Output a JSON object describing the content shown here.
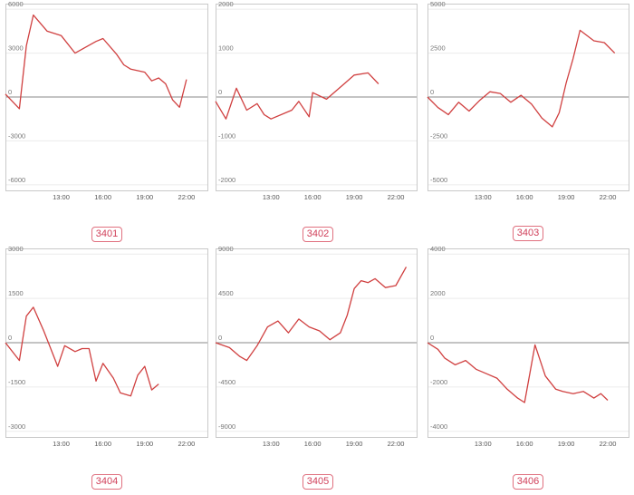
{
  "line_color": "#d04040",
  "label_color": "#d0405a",
  "chart_data": [
    {
      "type": "line",
      "label": "3401",
      "yticks": [
        6000,
        3000,
        0,
        -3000,
        -6000
      ],
      "ylim": [
        -6000,
        6000
      ],
      "xticks": [
        "13:00",
        "16:00",
        "19:00",
        "22:00"
      ],
      "x": [
        "09:00",
        "10:00",
        "10:30",
        "11:00",
        "12:00",
        "13:00",
        "14:00",
        "15:30",
        "16:00",
        "17:00",
        "17:30",
        "18:00",
        "19:00",
        "19:30",
        "20:00",
        "20:30",
        "21:00",
        "21:30",
        "22:00"
      ],
      "values": [
        200,
        -800,
        3500,
        5600,
        4500,
        4200,
        3000,
        3800,
        4000,
        2900,
        2200,
        1900,
        1700,
        1100,
        1300,
        900,
        -200,
        -700,
        1200
      ]
    },
    {
      "type": "line",
      "label": "3402",
      "yticks": [
        2000,
        1000,
        0,
        -1000,
        -2000
      ],
      "ylim": [
        -2000,
        2000
      ],
      "xticks": [
        "13:00",
        "16:00",
        "19:00",
        "22:00"
      ],
      "x": [
        "09:00",
        "09:45",
        "10:30",
        "11:15",
        "12:00",
        "12:30",
        "13:00",
        "14:30",
        "15:00",
        "15:45",
        "16:00",
        "17:00",
        "19:00",
        "20:00",
        "20:45"
      ],
      "values": [
        -100,
        -500,
        200,
        -300,
        -150,
        -400,
        -500,
        -300,
        -100,
        -450,
        100,
        -50,
        500,
        550,
        300
      ]
    },
    {
      "type": "line",
      "label": "3403",
      "yticks": [
        5000,
        2500,
        0,
        -2500,
        -5000
      ],
      "ylim": [
        -5000,
        5000
      ],
      "xticks": [
        "13:00",
        "16:00",
        "19:00",
        "22:00"
      ],
      "x": [
        "09:00",
        "09:45",
        "10:30",
        "11:15",
        "12:00",
        "12:45",
        "13:30",
        "14:15",
        "15:00",
        "15:45",
        "16:30",
        "17:15",
        "18:00",
        "18:30",
        "19:00",
        "19:30",
        "20:00",
        "21:00",
        "21:45",
        "22:30"
      ],
      "values": [
        0,
        -600,
        -1000,
        -300,
        -800,
        -200,
        300,
        200,
        -300,
        100,
        -400,
        -1200,
        -1700,
        -900,
        800,
        2200,
        3800,
        3200,
        3100,
        2500
      ]
    },
    {
      "type": "line",
      "label": "3404",
      "yticks": [
        3000,
        1500,
        0,
        -1500,
        -3000
      ],
      "ylim": [
        -3000,
        3000
      ],
      "xticks": [
        "13:00",
        "16:00",
        "19:00",
        "22:00"
      ],
      "x": [
        "09:00",
        "10:00",
        "10:30",
        "11:00",
        "11:45",
        "12:15",
        "12:45",
        "13:15",
        "14:00",
        "14:30",
        "15:00",
        "15:30",
        "16:00",
        "16:45",
        "17:15",
        "18:00",
        "18:30",
        "19:00",
        "19:30",
        "20:00"
      ],
      "values": [
        0,
        -600,
        900,
        1200,
        400,
        -200,
        -800,
        -100,
        -300,
        -200,
        -200,
        -1300,
        -700,
        -1200,
        -1700,
        -1800,
        -1100,
        -800,
        -1600,
        -1400
      ]
    },
    {
      "type": "line",
      "label": "3405",
      "yticks": [
        9000,
        4500,
        0,
        -4500,
        -9000
      ],
      "ylim": [
        -9000,
        9000
      ],
      "xticks": [
        "13:00",
        "16:00",
        "19:00",
        "22:00"
      ],
      "x": [
        "09:00",
        "10:00",
        "10:45",
        "11:15",
        "12:00",
        "12:45",
        "13:30",
        "14:15",
        "15:00",
        "15:45",
        "16:30",
        "17:15",
        "18:00",
        "18:30",
        "19:00",
        "19:30",
        "20:00",
        "20:30",
        "21:15",
        "22:00",
        "22:45"
      ],
      "values": [
        0,
        -500,
        -1400,
        -1800,
        -300,
        1600,
        2200,
        1000,
        2400,
        1600,
        1200,
        300,
        1000,
        2800,
        5500,
        6300,
        6100,
        6500,
        5600,
        5800,
        7700
      ]
    },
    {
      "type": "line",
      "label": "3406",
      "yticks": [
        4000,
        2000,
        0,
        -2000,
        -4000
      ],
      "ylim": [
        -4000,
        4000
      ],
      "xticks": [
        "13:00",
        "16:00",
        "19:00",
        "22:00"
      ],
      "x": [
        "09:00",
        "09:45",
        "10:15",
        "11:00",
        "11:45",
        "12:30",
        "13:15",
        "14:00",
        "14:45",
        "15:30",
        "16:00",
        "16:45",
        "17:30",
        "18:15",
        "18:45",
        "19:30",
        "20:15",
        "21:00",
        "21:30",
        "22:00"
      ],
      "values": [
        0,
        -300,
        -700,
        -1000,
        -800,
        -1200,
        -1400,
        -1600,
        -2100,
        -2500,
        -2700,
        -100,
        -1500,
        -2100,
        -2200,
        -2300,
        -2200,
        -2500,
        -2300,
        -2600
      ]
    }
  ]
}
